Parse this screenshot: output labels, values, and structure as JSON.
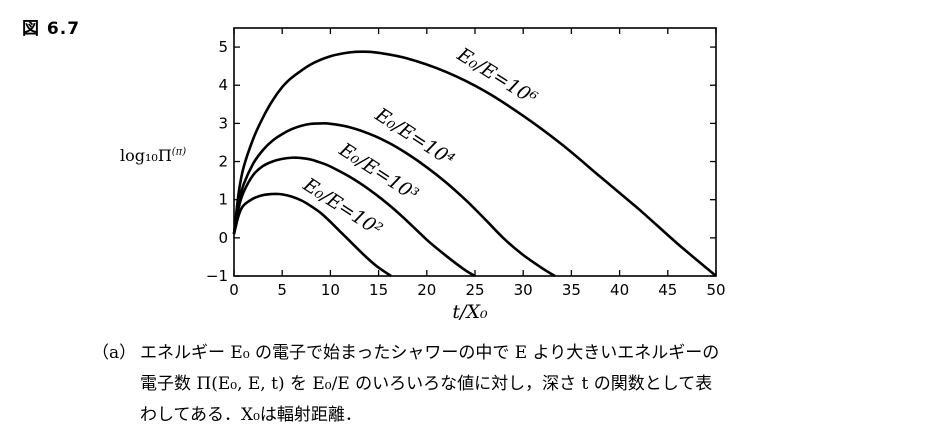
{
  "figure_label": "図 6.7",
  "ylabel_text": "log₁₀Π",
  "ylabel_sup": "(π)",
  "caption": {
    "tag": "（a）",
    "lines": [
      "エネルギー E₀ の電子で始まったシャワーの中で E より大きいエネルギーの",
      "電子数 Π(E₀, E, t) を E₀/E のいろいろな値に対し，深さ t の関数として表",
      "わしてある．X₀は輻射距離．"
    ]
  },
  "chart_data": {
    "type": "line",
    "xlabel": "t/X₀",
    "ylabel": "log₁₀Π(π)",
    "xlim": [
      0,
      50
    ],
    "ylim": [
      -1,
      5.5
    ],
    "xticks": [
      0,
      5,
      10,
      15,
      20,
      25,
      30,
      35,
      40,
      45,
      50
    ],
    "yticks": [
      -1,
      0,
      1,
      2,
      3,
      4,
      5
    ],
    "xtick_labels": [
      "0",
      "5",
      "10",
      "15",
      "20",
      "25",
      "30",
      "35",
      "40",
      "45",
      "50"
    ],
    "ytick_labels": [
      "−1",
      "0",
      "1",
      "2",
      "3",
      "4",
      "5"
    ],
    "grid": false,
    "series": [
      {
        "name": "E₀/E=10⁶",
        "x": [
          0,
          0.5,
          1,
          2,
          3,
          4,
          5,
          6,
          8,
          10,
          12,
          13.5,
          15,
          18,
          22,
          26,
          30,
          34,
          38,
          42,
          46,
          50
        ],
        "y": [
          0.1,
          1.2,
          1.85,
          2.6,
          3.15,
          3.6,
          3.95,
          4.2,
          4.55,
          4.76,
          4.86,
          4.88,
          4.85,
          4.7,
          4.35,
          3.85,
          3.2,
          2.45,
          1.6,
          0.75,
          -0.15,
          -1.0
        ]
      },
      {
        "name": "E₀/E=10⁴",
        "x": [
          0,
          0.5,
          1,
          2,
          3,
          4,
          5,
          6,
          7,
          8,
          9,
          10,
          12,
          14,
          16,
          18,
          20,
          22,
          24,
          26,
          28,
          30,
          32,
          33.3
        ],
        "y": [
          0.1,
          0.95,
          1.4,
          1.95,
          2.3,
          2.55,
          2.72,
          2.85,
          2.94,
          2.99,
          3.0,
          2.99,
          2.9,
          2.73,
          2.5,
          2.2,
          1.85,
          1.45,
          1.0,
          0.5,
          -0.02,
          -0.45,
          -0.8,
          -1.0
        ]
      },
      {
        "name": "E₀/E=10³",
        "x": [
          0,
          0.5,
          1,
          2,
          3,
          4,
          5,
          6,
          6.5,
          7,
          8,
          9,
          10,
          12,
          14,
          16,
          18,
          20,
          22,
          24,
          25
        ],
        "y": [
          0.1,
          0.8,
          1.2,
          1.65,
          1.88,
          2.0,
          2.07,
          2.1,
          2.1,
          2.09,
          2.05,
          1.97,
          1.87,
          1.6,
          1.27,
          0.88,
          0.43,
          -0.05,
          -0.47,
          -0.85,
          -1.0
        ]
      },
      {
        "name": "E₀/E=10²",
        "x": [
          0,
          0.5,
          1,
          2,
          3,
          4,
          4.5,
          5,
          6,
          7,
          8,
          9,
          10,
          11,
          12,
          13,
          14,
          15,
          16.3
        ],
        "y": [
          0.1,
          0.6,
          0.85,
          1.03,
          1.12,
          1.15,
          1.15,
          1.14,
          1.08,
          0.98,
          0.83,
          0.65,
          0.42,
          0.17,
          -0.08,
          -0.33,
          -0.57,
          -0.78,
          -1.0
        ]
      }
    ]
  }
}
